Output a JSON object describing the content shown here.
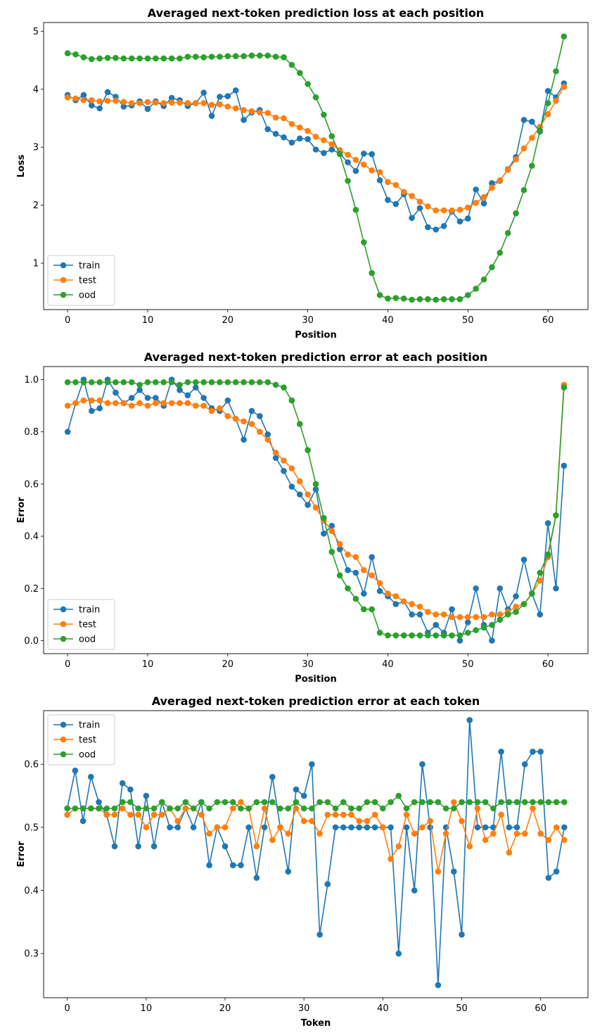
{
  "colors": {
    "train": "#1f77b4",
    "test": "#ff7f0e",
    "ood": "#2ca02c"
  },
  "chart_data": [
    {
      "type": "line",
      "title": "Averaged next-token prediction loss at each position",
      "xlabel": "Position",
      "ylabel": "Loss",
      "xlim": [
        -3,
        65
      ],
      "ylim": [
        0.2,
        5.15
      ],
      "xticks": [
        0,
        10,
        20,
        30,
        40,
        50,
        60
      ],
      "yticks": [
        1,
        2,
        3,
        4,
        5
      ],
      "ytick_decimals": 0,
      "legend": "lower-left",
      "x": [
        0,
        1,
        2,
        3,
        4,
        5,
        6,
        7,
        8,
        9,
        10,
        11,
        12,
        13,
        14,
        15,
        16,
        17,
        18,
        19,
        20,
        21,
        22,
        23,
        24,
        25,
        26,
        27,
        28,
        29,
        30,
        31,
        32,
        33,
        34,
        35,
        36,
        37,
        38,
        39,
        40,
        41,
        42,
        43,
        44,
        45,
        46,
        47,
        48,
        49,
        50,
        51,
        52,
        53,
        54,
        55,
        56,
        57,
        58,
        59,
        60,
        61,
        62
      ],
      "series": [
        {
          "name": "train",
          "values": [
            3.9,
            3.81,
            3.9,
            3.72,
            3.67,
            3.95,
            3.87,
            3.7,
            3.72,
            3.79,
            3.66,
            3.79,
            3.71,
            3.85,
            3.81,
            3.71,
            3.76,
            3.94,
            3.54,
            3.87,
            3.88,
            3.98,
            3.47,
            3.6,
            3.64,
            3.31,
            3.23,
            3.17,
            3.08,
            3.15,
            3.14,
            2.96,
            2.9,
            2.96,
            2.89,
            2.74,
            2.59,
            2.89,
            2.88,
            2.43,
            2.09,
            2.02,
            2.19,
            1.78,
            1.95,
            1.62,
            1.58,
            1.64,
            1.89,
            1.72,
            1.77,
            2.27,
            2.03,
            2.38,
            2.42,
            2.62,
            2.83,
            3.47,
            3.44,
            3.27,
            3.97,
            3.86,
            4.1
          ]
        },
        {
          "name": "test",
          "values": [
            3.86,
            3.84,
            3.81,
            3.81,
            3.79,
            3.8,
            3.8,
            3.78,
            3.76,
            3.76,
            3.78,
            3.77,
            3.76,
            3.77,
            3.77,
            3.76,
            3.76,
            3.76,
            3.73,
            3.74,
            3.7,
            3.67,
            3.64,
            3.62,
            3.6,
            3.59,
            3.51,
            3.5,
            3.4,
            3.34,
            3.28,
            3.18,
            3.12,
            3.05,
            2.95,
            2.87,
            2.78,
            2.7,
            2.6,
            2.57,
            2.4,
            2.35,
            2.23,
            2.16,
            2.06,
            1.98,
            1.91,
            1.91,
            1.91,
            1.92,
            1.96,
            2.04,
            2.14,
            2.3,
            2.43,
            2.61,
            2.79,
            2.98,
            3.16,
            3.35,
            3.57,
            3.8,
            4.04
          ]
        },
        {
          "name": "ood",
          "values": [
            4.62,
            4.6,
            4.55,
            4.52,
            4.53,
            4.54,
            4.54,
            4.53,
            4.53,
            4.53,
            4.53,
            4.53,
            4.53,
            4.53,
            4.53,
            4.56,
            4.56,
            4.55,
            4.56,
            4.56,
            4.57,
            4.57,
            4.57,
            4.58,
            4.58,
            4.58,
            4.56,
            4.55,
            4.42,
            4.28,
            4.09,
            3.86,
            3.56,
            3.19,
            2.88,
            2.42,
            1.92,
            1.36,
            0.83,
            0.45,
            0.39,
            0.4,
            0.39,
            0.37,
            0.38,
            0.38,
            0.37,
            0.38,
            0.38,
            0.38,
            0.45,
            0.56,
            0.72,
            0.93,
            1.18,
            1.52,
            1.86,
            2.26,
            2.68,
            3.29,
            3.76,
            4.31,
            4.91
          ]
        }
      ]
    },
    {
      "type": "line",
      "title": "Averaged next-token prediction error at each position",
      "xlabel": "Position",
      "ylabel": "Error",
      "xlim": [
        -3,
        65
      ],
      "ylim": [
        -0.05,
        1.05
      ],
      "xticks": [
        0,
        10,
        20,
        30,
        40,
        50,
        60
      ],
      "yticks": [
        0.0,
        0.2,
        0.4,
        0.6,
        0.8,
        1.0
      ],
      "ytick_decimals": 1,
      "legend": "lower-left",
      "x": [
        0,
        1,
        2,
        3,
        4,
        5,
        6,
        7,
        8,
        9,
        10,
        11,
        12,
        13,
        14,
        15,
        16,
        17,
        18,
        19,
        20,
        21,
        22,
        23,
        24,
        25,
        26,
        27,
        28,
        29,
        30,
        31,
        32,
        33,
        34,
        35,
        36,
        37,
        38,
        39,
        40,
        41,
        42,
        43,
        44,
        45,
        46,
        47,
        48,
        49,
        50,
        51,
        52,
        53,
        54,
        55,
        56,
        57,
        58,
        59,
        60,
        61,
        62
      ],
      "series": [
        {
          "name": "train",
          "values": [
            0.8,
            0.91,
            1.0,
            0.88,
            0.89,
            1.0,
            0.95,
            0.91,
            0.93,
            0.96,
            0.93,
            0.93,
            0.9,
            1.0,
            0.96,
            0.94,
            0.97,
            0.93,
            0.89,
            0.88,
            0.92,
            0.85,
            0.77,
            0.88,
            0.86,
            0.79,
            0.7,
            0.65,
            0.59,
            0.56,
            0.52,
            0.58,
            0.41,
            0.44,
            0.35,
            0.27,
            0.26,
            0.18,
            0.32,
            0.19,
            0.17,
            0.14,
            0.15,
            0.1,
            0.1,
            0.03,
            0.06,
            0.03,
            0.12,
            0.0,
            0.07,
            0.2,
            0.06,
            0.0,
            0.2,
            0.12,
            0.17,
            0.31,
            0.18,
            0.1,
            0.45,
            0.2,
            0.67
          ]
        },
        {
          "name": "test",
          "values": [
            0.9,
            0.91,
            0.92,
            0.92,
            0.92,
            0.91,
            0.91,
            0.91,
            0.9,
            0.91,
            0.9,
            0.91,
            0.91,
            0.91,
            0.91,
            0.91,
            0.9,
            0.9,
            0.88,
            0.89,
            0.86,
            0.85,
            0.84,
            0.83,
            0.8,
            0.77,
            0.72,
            0.69,
            0.66,
            0.61,
            0.56,
            0.51,
            0.46,
            0.42,
            0.37,
            0.33,
            0.32,
            0.27,
            0.25,
            0.22,
            0.18,
            0.17,
            0.15,
            0.14,
            0.13,
            0.11,
            0.1,
            0.1,
            0.09,
            0.09,
            0.09,
            0.09,
            0.09,
            0.1,
            0.1,
            0.11,
            0.13,
            0.14,
            0.18,
            0.23,
            0.32,
            0.48,
            0.98
          ]
        },
        {
          "name": "ood",
          "values": [
            0.99,
            0.99,
            0.99,
            0.99,
            0.99,
            0.99,
            0.99,
            0.99,
            0.99,
            0.98,
            0.99,
            0.99,
            0.99,
            0.99,
            0.98,
            0.99,
            0.99,
            0.99,
            0.99,
            0.99,
            0.99,
            0.99,
            0.99,
            0.99,
            0.99,
            0.99,
            0.98,
            0.97,
            0.92,
            0.83,
            0.73,
            0.6,
            0.47,
            0.34,
            0.25,
            0.2,
            0.16,
            0.12,
            0.12,
            0.03,
            0.02,
            0.02,
            0.02,
            0.02,
            0.02,
            0.02,
            0.02,
            0.02,
            0.02,
            0.02,
            0.03,
            0.04,
            0.05,
            0.06,
            0.08,
            0.1,
            0.11,
            0.14,
            0.18,
            0.26,
            0.33,
            0.48,
            0.97
          ]
        }
      ]
    },
    {
      "type": "line",
      "title": "Averaged next-token prediction error at each token",
      "xlabel": "Token",
      "ylabel": "Error",
      "xlim": [
        -3,
        66
      ],
      "ylim": [
        0.23,
        0.685
      ],
      "xticks": [
        0,
        10,
        20,
        30,
        40,
        50,
        60
      ],
      "yticks": [
        0.3,
        0.4,
        0.5,
        0.6
      ],
      "ytick_decimals": 1,
      "legend": "upper-left",
      "x": [
        0,
        1,
        2,
        3,
        4,
        5,
        6,
        7,
        8,
        9,
        10,
        11,
        12,
        13,
        14,
        15,
        16,
        17,
        18,
        19,
        20,
        21,
        22,
        23,
        24,
        25,
        26,
        27,
        28,
        29,
        30,
        31,
        32,
        33,
        34,
        35,
        36,
        37,
        38,
        39,
        40,
        41,
        42,
        43,
        44,
        45,
        46,
        47,
        48,
        49,
        50,
        51,
        52,
        53,
        54,
        55,
        56,
        57,
        58,
        59,
        60,
        61,
        62,
        63
      ],
      "series": [
        {
          "name": "train",
          "values": [
            0.53,
            0.59,
            0.51,
            0.58,
            0.54,
            0.52,
            0.47,
            0.57,
            0.56,
            0.47,
            0.55,
            0.47,
            0.54,
            0.5,
            0.5,
            0.53,
            0.5,
            0.54,
            0.44,
            0.5,
            0.47,
            0.44,
            0.44,
            0.5,
            0.42,
            0.5,
            0.58,
            0.5,
            0.43,
            0.56,
            0.55,
            0.6,
            0.33,
            0.41,
            0.5,
            0.5,
            0.5,
            0.5,
            0.5,
            0.5,
            0.5,
            0.5,
            0.3,
            0.5,
            0.4,
            0.6,
            0.5,
            0.25,
            0.5,
            0.43,
            0.33,
            0.67,
            0.5,
            0.5,
            0.5,
            0.62,
            0.5,
            0.5,
            0.6,
            0.62,
            0.62,
            0.42,
            0.43,
            0.5
          ]
        },
        {
          "name": "test",
          "values": [
            0.52,
            0.53,
            0.53,
            0.53,
            0.53,
            0.52,
            0.52,
            0.53,
            0.52,
            0.52,
            0.5,
            0.52,
            0.52,
            0.53,
            0.51,
            0.53,
            0.53,
            0.52,
            0.49,
            0.5,
            0.5,
            0.53,
            0.54,
            0.53,
            0.47,
            0.53,
            0.48,
            0.5,
            0.49,
            0.53,
            0.51,
            0.51,
            0.49,
            0.52,
            0.52,
            0.52,
            0.52,
            0.51,
            0.51,
            0.52,
            0.5,
            0.45,
            0.47,
            0.52,
            0.49,
            0.5,
            0.51,
            0.43,
            0.49,
            0.54,
            0.51,
            0.47,
            0.53,
            0.48,
            0.49,
            0.52,
            0.46,
            0.49,
            0.49,
            0.53,
            0.49,
            0.48,
            0.5,
            0.48
          ]
        },
        {
          "name": "ood",
          "values": [
            0.53,
            0.53,
            0.53,
            0.53,
            0.53,
            0.53,
            0.53,
            0.54,
            0.54,
            0.53,
            0.53,
            0.53,
            0.54,
            0.53,
            0.53,
            0.54,
            0.53,
            0.54,
            0.53,
            0.54,
            0.54,
            0.54,
            0.53,
            0.53,
            0.54,
            0.54,
            0.54,
            0.53,
            0.53,
            0.54,
            0.53,
            0.53,
            0.54,
            0.54,
            0.53,
            0.54,
            0.53,
            0.53,
            0.54,
            0.54,
            0.53,
            0.54,
            0.55,
            0.53,
            0.54,
            0.54,
            0.54,
            0.54,
            0.53,
            0.53,
            0.54,
            0.54,
            0.54,
            0.54,
            0.53,
            0.54,
            0.54,
            0.54,
            0.54,
            0.54,
            0.54,
            0.54,
            0.54,
            0.54
          ]
        }
      ]
    }
  ]
}
